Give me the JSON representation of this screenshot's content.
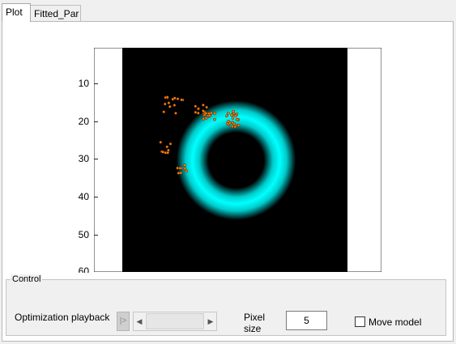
{
  "tabs": [
    {
      "label": "Plot",
      "active": true
    },
    {
      "label": "Fitted_Par",
      "active": false
    }
  ],
  "plot": {
    "yticks": [
      "10",
      "20",
      "30",
      "40",
      "50",
      "60"
    ],
    "colors": {
      "background": "#000000",
      "ring": "#00e5e5",
      "points": "#ff7f0e"
    }
  },
  "control": {
    "title": "Control",
    "playback_label": "Optimization playback",
    "play_button": "|>",
    "pixel_size_label_line1": "Pixel",
    "pixel_size_label_line2": "size",
    "pixel_size_value": "5",
    "move_model_label": "Move model",
    "move_model_checked": false
  }
}
